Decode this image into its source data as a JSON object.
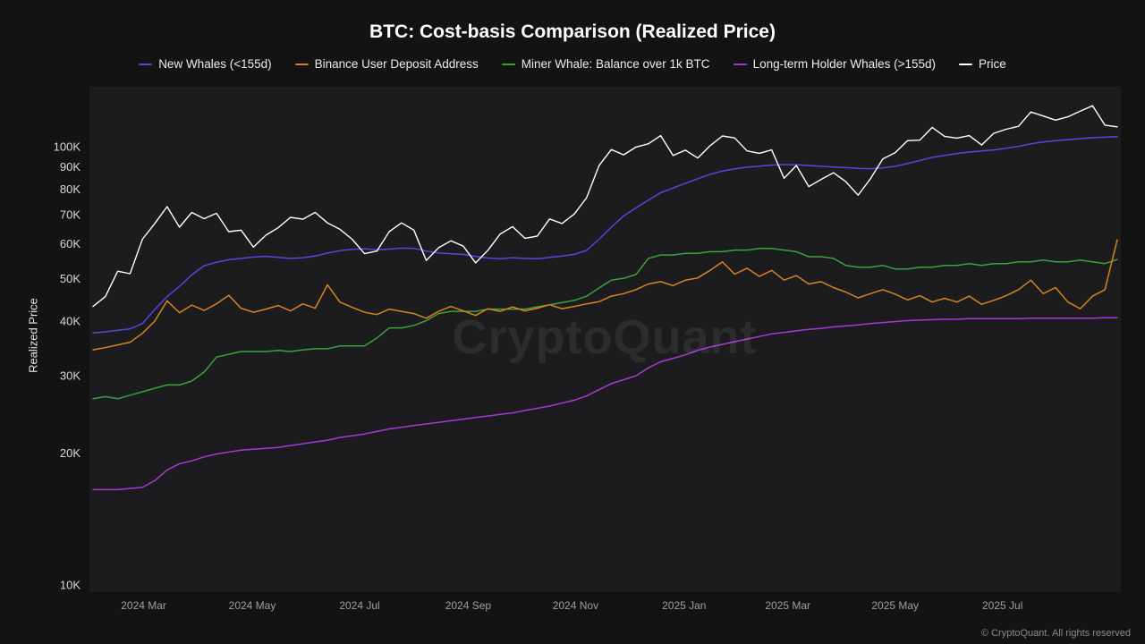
{
  "title": "BTC: Cost-basis Comparison (Realized Price)",
  "watermark": "CryptoQuant",
  "footer": "© CryptoQuant. All rights reserved",
  "colors": {
    "page_background": "#131313",
    "plot_background": "#1c1c1e",
    "ytick_text": "#d9d9d9",
    "xtick_text": "#9f9f9f",
    "title_text": "#ffffff"
  },
  "chart_data": {
    "type": "line",
    "title": "BTC: Cost-basis Comparison (Realized Price)",
    "ylabel": "Realized Price",
    "xlabel": "",
    "yscale": "log",
    "ylim": [
      9600,
      137000
    ],
    "grid": false,
    "legend_position": "top",
    "x_axis": {
      "start": "2024-02",
      "end": "2025-09",
      "points": 84,
      "interval": "weekly"
    },
    "units": "thousand USD",
    "y_ticks": [
      {
        "label": "100K",
        "value_k": 100
      },
      {
        "label": "90K",
        "value_k": 90
      },
      {
        "label": "80K",
        "value_k": 80
      },
      {
        "label": "70K",
        "value_k": 70
      },
      {
        "label": "60K",
        "value_k": 60
      },
      {
        "label": "50K",
        "value_k": 50
      },
      {
        "label": "40K",
        "value_k": 40
      },
      {
        "label": "30K",
        "value_k": 30
      },
      {
        "label": "20K",
        "value_k": 20
      },
      {
        "label": "10K",
        "value_k": 10
      }
    ],
    "x_ticks": [
      {
        "label": "2024 Mar",
        "week": 4.1
      },
      {
        "label": "2024 May",
        "week": 12.9
      },
      {
        "label": "2024 Jul",
        "week": 21.6
      },
      {
        "label": "2024 Sep",
        "week": 30.4
      },
      {
        "label": "2024 Nov",
        "week": 39.1
      },
      {
        "label": "2025 Jan",
        "week": 47.9
      },
      {
        "label": "2025 Mar",
        "week": 56.3
      },
      {
        "label": "2025 May",
        "week": 65.0
      },
      {
        "label": "2025 Jul",
        "week": 73.7
      }
    ],
    "series": [
      {
        "name": "New Whales (<155d)",
        "color": "#5149e0",
        "values": [
          37.6,
          37.8,
          38.1,
          38.4,
          39.5,
          42.5,
          45.5,
          48.0,
          51.0,
          53.5,
          54.5,
          55.2,
          55.6,
          56.0,
          56.2,
          55.9,
          55.6,
          55.8,
          56.3,
          57.2,
          57.9,
          58.3,
          58.5,
          58.2,
          58.4,
          58.7,
          58.6,
          57.8,
          57.2,
          57.0,
          56.8,
          56.2,
          55.7,
          55.5,
          55.8,
          55.6,
          55.5,
          55.9,
          56.3,
          56.8,
          58.0,
          61.5,
          65.5,
          69.5,
          72.5,
          75.5,
          78.5,
          80.5,
          82.5,
          84.5,
          86.5,
          88.0,
          89.0,
          89.8,
          90.3,
          90.8,
          91.0,
          91.0,
          90.6,
          90.2,
          89.9,
          89.6,
          89.2,
          89.1,
          89.4,
          90.2,
          91.5,
          93.0,
          94.5,
          95.5,
          96.5,
          97.2,
          97.8,
          98.3,
          99.2,
          100.2,
          101.5,
          102.5,
          103.2,
          103.8,
          104.3,
          104.8,
          105.1,
          105.4
        ]
      },
      {
        "name": "Binance User Deposit Address",
        "color": "#d9821f",
        "values": [
          34.4,
          34.8,
          35.3,
          35.8,
          37.5,
          40.0,
          44.5,
          41.8,
          43.5,
          42.3,
          43.8,
          45.8,
          42.8,
          41.9,
          42.6,
          43.4,
          42.2,
          43.8,
          42.8,
          48.4,
          44.2,
          43.0,
          41.9,
          41.4,
          42.6,
          42.1,
          41.6,
          40.6,
          42.1,
          43.2,
          42.2,
          41.2,
          42.7,
          42.1,
          43.1,
          42.2,
          42.8,
          43.6,
          42.7,
          43.2,
          43.8,
          44.3,
          45.6,
          46.2,
          47.2,
          48.6,
          49.2,
          48.2,
          49.6,
          50.2,
          52.2,
          54.6,
          51.2,
          52.8,
          50.6,
          52.2,
          49.6,
          50.8,
          48.6,
          49.2,
          47.7,
          46.6,
          45.2,
          46.2,
          47.2,
          46.1,
          44.7,
          45.7,
          44.2,
          45.1,
          44.2,
          45.6,
          43.7,
          44.6,
          45.7,
          47.2,
          49.6,
          46.2,
          47.7,
          44.2,
          42.7,
          45.6,
          47.2,
          61.3
        ]
      },
      {
        "name": "Miner Whale: Balance over 1k BTC",
        "color": "#3aa33a",
        "values": [
          26.6,
          26.9,
          26.6,
          27.1,
          27.6,
          28.1,
          28.6,
          28.6,
          29.2,
          30.6,
          33.1,
          33.6,
          34.1,
          34.1,
          34.1,
          34.3,
          34.1,
          34.4,
          34.6,
          34.6,
          35.1,
          35.1,
          35.1,
          36.6,
          38.6,
          38.6,
          39.1,
          40.1,
          41.6,
          42.1,
          42.1,
          42.1,
          42.6,
          42.6,
          42.6,
          42.6,
          43.1,
          43.6,
          44.1,
          44.6,
          45.6,
          47.6,
          49.6,
          50.1,
          51.1,
          55.6,
          56.6,
          56.6,
          57.1,
          57.1,
          57.6,
          57.6,
          58.1,
          58.1,
          58.6,
          58.6,
          58.1,
          57.6,
          56.1,
          56.1,
          55.6,
          53.6,
          53.1,
          53.1,
          53.6,
          52.6,
          52.6,
          53.1,
          53.1,
          53.6,
          53.6,
          54.1,
          53.6,
          54.1,
          54.1,
          54.6,
          54.6,
          55.1,
          54.6,
          54.6,
          55.1,
          54.6,
          54.1,
          55.3
        ]
      },
      {
        "name": "Long-term Holder Whales (>155d)",
        "color": "#a63bd4",
        "values": [
          16.5,
          16.5,
          16.5,
          16.6,
          16.7,
          17.3,
          18.3,
          18.9,
          19.2,
          19.6,
          19.9,
          20.1,
          20.3,
          20.4,
          20.5,
          20.6,
          20.8,
          21.0,
          21.2,
          21.4,
          21.7,
          21.9,
          22.1,
          22.4,
          22.7,
          22.9,
          23.1,
          23.3,
          23.5,
          23.7,
          23.9,
          24.1,
          24.3,
          24.5,
          24.7,
          25.0,
          25.3,
          25.6,
          26.0,
          26.4,
          27.0,
          27.9,
          28.8,
          29.4,
          30.0,
          31.3,
          32.3,
          32.9,
          33.5,
          34.3,
          34.9,
          35.4,
          35.9,
          36.4,
          36.9,
          37.4,
          37.7,
          38.0,
          38.3,
          38.5,
          38.8,
          39.0,
          39.2,
          39.5,
          39.7,
          39.9,
          40.1,
          40.2,
          40.3,
          40.4,
          40.4,
          40.5,
          40.5,
          40.5,
          40.5,
          40.5,
          40.6,
          40.6,
          40.6,
          40.6,
          40.6,
          40.6,
          40.7,
          40.7
        ]
      },
      {
        "name": "Price",
        "color": "#ffffff",
        "values": [
          43.2,
          45.5,
          52.0,
          51.3,
          61.5,
          66.8,
          73.0,
          65.5,
          70.8,
          68.5,
          70.5,
          64.0,
          64.5,
          59.0,
          62.8,
          65.3,
          69.0,
          68.3,
          70.8,
          67.0,
          64.8,
          61.5,
          57.0,
          57.8,
          64.0,
          67.0,
          64.5,
          55.0,
          58.8,
          61.0,
          59.3,
          54.3,
          58.0,
          63.2,
          65.7,
          61.8,
          62.5,
          68.4,
          66.8,
          70.2,
          76.5,
          90.5,
          98.5,
          95.8,
          99.8,
          101.5,
          106.0,
          95.5,
          98.2,
          94.2,
          100.5,
          105.8,
          104.7,
          97.8,
          96.6,
          98.3,
          84.7,
          90.6,
          81.1,
          84.2,
          87.2,
          83.2,
          77.5,
          84.5,
          93.8,
          96.9,
          103.2,
          103.5,
          110.7,
          105.6,
          104.6,
          106.0,
          100.9,
          107.3,
          109.6,
          111.3,
          120.0,
          117.5,
          115.0,
          117.0,
          120.5,
          124.0,
          112.0,
          111.0
        ]
      }
    ]
  }
}
